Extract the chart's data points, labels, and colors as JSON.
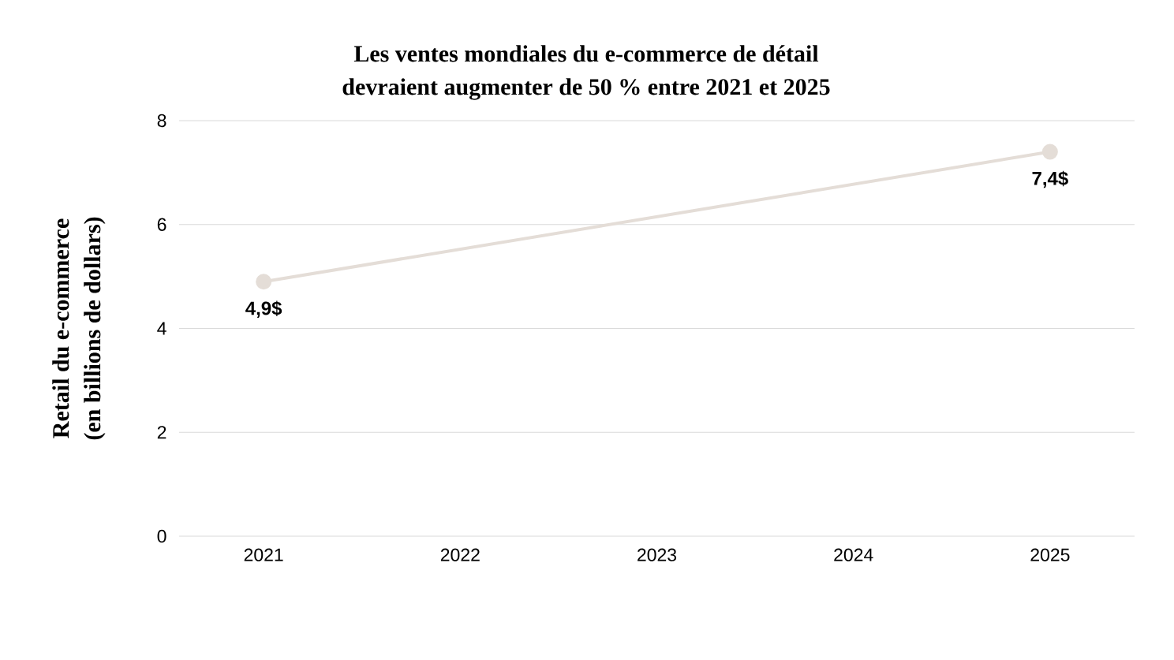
{
  "chart_data": {
    "type": "line",
    "title": "Les ventes mondiales du e-commerce de détail devraient augmenter de 50 % entre 2021 et 2025",
    "ylabel": "Retail du e-commerce (en billions de dollars)",
    "x": [
      2021,
      2025
    ],
    "values": [
      4.9,
      7.4
    ],
    "value_labels": [
      "4,9$",
      "7,4$"
    ],
    "color": "#e4ddd7",
    "xlim": [
      2020.57,
      2025.43
    ],
    "xticks": [
      2021,
      2022,
      2023,
      2024,
      2025
    ],
    "ylim": [
      0,
      8
    ],
    "yticks": [
      0,
      2,
      4,
      6,
      8
    ],
    "grid": "y",
    "marker": "circle",
    "line_style": "solid"
  }
}
